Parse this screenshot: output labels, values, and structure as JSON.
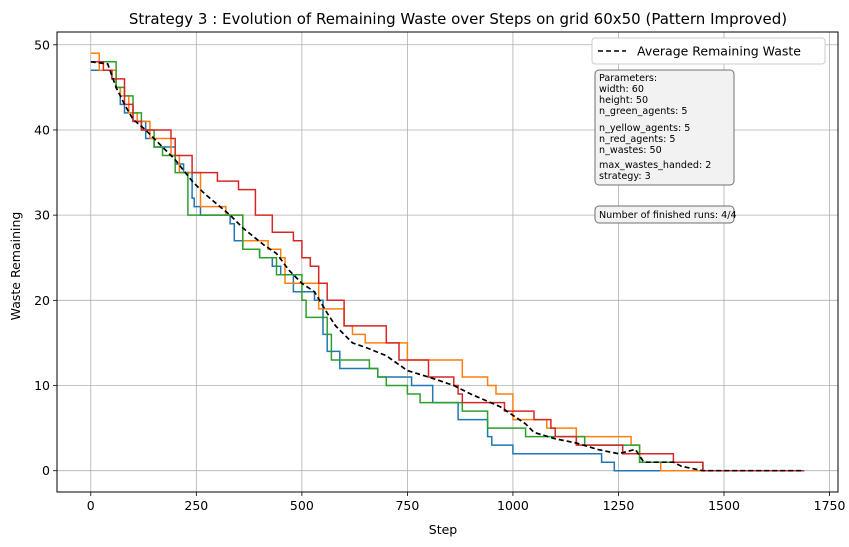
{
  "chart_data": {
    "type": "line",
    "title": "Strategy 3 : Evolution of Remaining Waste over Steps on grid 60x50 (Pattern Improved)",
    "xlabel": "Step",
    "ylabel": "Waste Remaining",
    "xlim": [
      -80,
      1770
    ],
    "ylim": [
      -2.5,
      51.5
    ],
    "xticks": [
      0,
      250,
      500,
      750,
      1000,
      1250,
      1500,
      1750
    ],
    "yticks": [
      0,
      10,
      20,
      30,
      40,
      50
    ],
    "grid": true,
    "legend": {
      "placement": "top-right",
      "entries": [
        "Average Remaining Waste"
      ]
    },
    "parameters_box": {
      "lines": [
        "Parameters:",
        "width: 60",
        "height: 50",
        "n_green_agents: 5",
        "n_yellow_agents: 5",
        "n_red_agents: 5",
        "n_wastes: 50",
        "max_wastes_handed: 2",
        "strategy: 3"
      ]
    },
    "finished_runs_box": {
      "text": "Number of finished runs: 4/4"
    },
    "series": [
      {
        "color": "#1f77b4",
        "style": "step",
        "points": [
          [
            0,
            47
          ],
          [
            50,
            46
          ],
          [
            60,
            45
          ],
          [
            70,
            43
          ],
          [
            80,
            42
          ],
          [
            100,
            41
          ],
          [
            130,
            39
          ],
          [
            150,
            38
          ],
          [
            200,
            36
          ],
          [
            220,
            35
          ],
          [
            240,
            32
          ],
          [
            245,
            31
          ],
          [
            260,
            30
          ],
          [
            330,
            29
          ],
          [
            340,
            27
          ],
          [
            360,
            26
          ],
          [
            390,
            26
          ],
          [
            400,
            25
          ],
          [
            430,
            24
          ],
          [
            450,
            23
          ],
          [
            480,
            21
          ],
          [
            530,
            20
          ],
          [
            550,
            16
          ],
          [
            560,
            14
          ],
          [
            590,
            12
          ],
          [
            680,
            11
          ],
          [
            760,
            10
          ],
          [
            810,
            8
          ],
          [
            870,
            6
          ],
          [
            940,
            4
          ],
          [
            950,
            3
          ],
          [
            1000,
            2
          ],
          [
            1210,
            1
          ],
          [
            1240,
            0
          ],
          [
            1690,
            0
          ]
        ]
      },
      {
        "color": "#ff7f0e",
        "style": "step",
        "points": [
          [
            0,
            49
          ],
          [
            10,
            49
          ],
          [
            20,
            47
          ],
          [
            50,
            47
          ],
          [
            60,
            45
          ],
          [
            70,
            44
          ],
          [
            90,
            42
          ],
          [
            110,
            41
          ],
          [
            140,
            39
          ],
          [
            190,
            37
          ],
          [
            210,
            35
          ],
          [
            260,
            31
          ],
          [
            300,
            31
          ],
          [
            320,
            30
          ],
          [
            360,
            27
          ],
          [
            420,
            26
          ],
          [
            450,
            25
          ],
          [
            460,
            22
          ],
          [
            500,
            22
          ],
          [
            540,
            19
          ],
          [
            600,
            17
          ],
          [
            620,
            16
          ],
          [
            650,
            15
          ],
          [
            700,
            15
          ],
          [
            750,
            13
          ],
          [
            860,
            13
          ],
          [
            880,
            11
          ],
          [
            940,
            10
          ],
          [
            960,
            9
          ],
          [
            1000,
            6
          ],
          [
            1080,
            5
          ],
          [
            1150,
            4
          ],
          [
            1280,
            3
          ],
          [
            1300,
            1
          ],
          [
            1340,
            1
          ],
          [
            1350,
            0
          ],
          [
            1690,
            0
          ]
        ]
      },
      {
        "color": "#2ca02c",
        "style": "step",
        "points": [
          [
            0,
            48
          ],
          [
            30,
            48
          ],
          [
            40,
            48
          ],
          [
            60,
            45
          ],
          [
            80,
            44
          ],
          [
            100,
            42
          ],
          [
            120,
            40
          ],
          [
            140,
            40
          ],
          [
            150,
            38
          ],
          [
            170,
            37
          ],
          [
            200,
            35
          ],
          [
            230,
            30
          ],
          [
            270,
            30
          ],
          [
            290,
            30
          ],
          [
            360,
            26
          ],
          [
            400,
            25
          ],
          [
            440,
            23
          ],
          [
            500,
            20
          ],
          [
            510,
            18
          ],
          [
            560,
            16
          ],
          [
            570,
            13
          ],
          [
            620,
            13
          ],
          [
            660,
            12
          ],
          [
            680,
            11
          ],
          [
            700,
            10
          ],
          [
            730,
            10
          ],
          [
            750,
            9
          ],
          [
            780,
            8
          ],
          [
            880,
            7
          ],
          [
            940,
            5
          ],
          [
            1030,
            4
          ],
          [
            1170,
            3
          ],
          [
            1300,
            1
          ],
          [
            1450,
            0
          ],
          [
            1690,
            0
          ]
        ]
      },
      {
        "color": "#d62728",
        "style": "step",
        "points": [
          [
            0,
            48
          ],
          [
            30,
            47
          ],
          [
            50,
            46
          ],
          [
            80,
            43
          ],
          [
            100,
            41
          ],
          [
            120,
            40
          ],
          [
            190,
            39
          ],
          [
            200,
            37
          ],
          [
            240,
            35
          ],
          [
            300,
            34
          ],
          [
            350,
            33
          ],
          [
            390,
            30
          ],
          [
            420,
            30
          ],
          [
            430,
            28
          ],
          [
            480,
            27
          ],
          [
            500,
            25
          ],
          [
            520,
            24
          ],
          [
            540,
            22
          ],
          [
            560,
            20
          ],
          [
            600,
            17
          ],
          [
            660,
            17
          ],
          [
            700,
            15
          ],
          [
            730,
            13
          ],
          [
            800,
            11
          ],
          [
            860,
            10
          ],
          [
            870,
            9
          ],
          [
            880,
            8
          ],
          [
            900,
            8
          ],
          [
            980,
            7
          ],
          [
            1000,
            7
          ],
          [
            1020,
            7
          ],
          [
            1050,
            6
          ],
          [
            1090,
            5
          ],
          [
            1100,
            4
          ],
          [
            1150,
            3
          ],
          [
            1260,
            2
          ],
          [
            1380,
            1
          ],
          [
            1450,
            0
          ],
          [
            1690,
            0
          ]
        ]
      },
      {
        "name": "Average Remaining Waste",
        "color": "#000000",
        "style": "dashed",
        "points": [
          [
            0,
            48
          ],
          [
            40,
            47.75
          ],
          [
            60,
            45
          ],
          [
            80,
            43
          ],
          [
            100,
            41.25
          ],
          [
            130,
            40
          ],
          [
            150,
            39
          ],
          [
            200,
            36.5
          ],
          [
            240,
            34
          ],
          [
            270,
            32.5
          ],
          [
            330,
            30
          ],
          [
            360,
            28.5
          ],
          [
            410,
            26.5
          ],
          [
            440,
            25.5
          ],
          [
            470,
            23.5
          ],
          [
            500,
            22
          ],
          [
            530,
            21
          ],
          [
            560,
            18.5
          ],
          [
            580,
            17
          ],
          [
            620,
            15
          ],
          [
            650,
            14.5
          ],
          [
            700,
            13.5
          ],
          [
            750,
            11.75
          ],
          [
            800,
            11
          ],
          [
            860,
            10
          ],
          [
            900,
            9
          ],
          [
            970,
            7.5
          ],
          [
            1000,
            6.5
          ],
          [
            1030,
            5.5
          ],
          [
            1050,
            4.5
          ],
          [
            1100,
            3.75
          ],
          [
            1150,
            3.25
          ],
          [
            1200,
            2.5
          ],
          [
            1250,
            2
          ],
          [
            1290,
            2.5
          ],
          [
            1310,
            1
          ],
          [
            1380,
            1
          ],
          [
            1400,
            0.5
          ],
          [
            1450,
            0
          ],
          [
            1690,
            0
          ]
        ]
      }
    ]
  }
}
